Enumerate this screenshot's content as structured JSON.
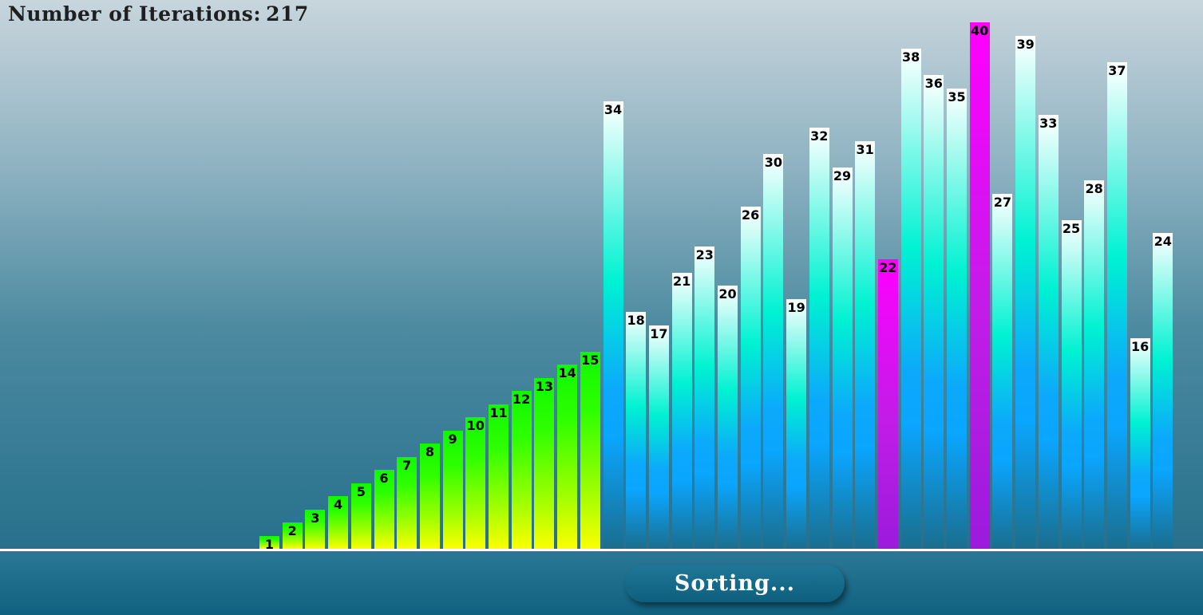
{
  "header": {
    "iterations_label": "Number of Iterations:",
    "iterations_value": "217"
  },
  "sort_button": {
    "label": "Sorting..."
  },
  "colors": {
    "sorted": "#2eff00",
    "unsorted": "#00f2d2",
    "active": "#ff00ff",
    "baseline": "#ffffff"
  },
  "chart_data": {
    "type": "bar",
    "max_value": 40,
    "bars": [
      {
        "value": 1,
        "state": "sorted"
      },
      {
        "value": 2,
        "state": "sorted"
      },
      {
        "value": 3,
        "state": "sorted"
      },
      {
        "value": 4,
        "state": "sorted"
      },
      {
        "value": 5,
        "state": "sorted"
      },
      {
        "value": 6,
        "state": "sorted"
      },
      {
        "value": 7,
        "state": "sorted"
      },
      {
        "value": 8,
        "state": "sorted"
      },
      {
        "value": 9,
        "state": "sorted"
      },
      {
        "value": 10,
        "state": "sorted"
      },
      {
        "value": 11,
        "state": "sorted"
      },
      {
        "value": 12,
        "state": "sorted"
      },
      {
        "value": 13,
        "state": "sorted"
      },
      {
        "value": 14,
        "state": "sorted"
      },
      {
        "value": 15,
        "state": "sorted"
      },
      {
        "value": 34,
        "state": "unsorted"
      },
      {
        "value": 18,
        "state": "unsorted"
      },
      {
        "value": 17,
        "state": "unsorted"
      },
      {
        "value": 21,
        "state": "unsorted"
      },
      {
        "value": 23,
        "state": "unsorted"
      },
      {
        "value": 20,
        "state": "unsorted"
      },
      {
        "value": 26,
        "state": "unsorted"
      },
      {
        "value": 30,
        "state": "unsorted"
      },
      {
        "value": 19,
        "state": "unsorted"
      },
      {
        "value": 32,
        "state": "unsorted"
      },
      {
        "value": 29,
        "state": "unsorted"
      },
      {
        "value": 31,
        "state": "unsorted"
      },
      {
        "value": 22,
        "state": "active"
      },
      {
        "value": 38,
        "state": "unsorted"
      },
      {
        "value": 36,
        "state": "unsorted"
      },
      {
        "value": 35,
        "state": "unsorted"
      },
      {
        "value": 40,
        "state": "active"
      },
      {
        "value": 27,
        "state": "unsorted"
      },
      {
        "value": 39,
        "state": "unsorted"
      },
      {
        "value": 33,
        "state": "unsorted"
      },
      {
        "value": 25,
        "state": "unsorted"
      },
      {
        "value": 28,
        "state": "unsorted"
      },
      {
        "value": 37,
        "state": "unsorted"
      },
      {
        "value": 16,
        "state": "unsorted"
      },
      {
        "value": 24,
        "state": "unsorted"
      }
    ]
  }
}
